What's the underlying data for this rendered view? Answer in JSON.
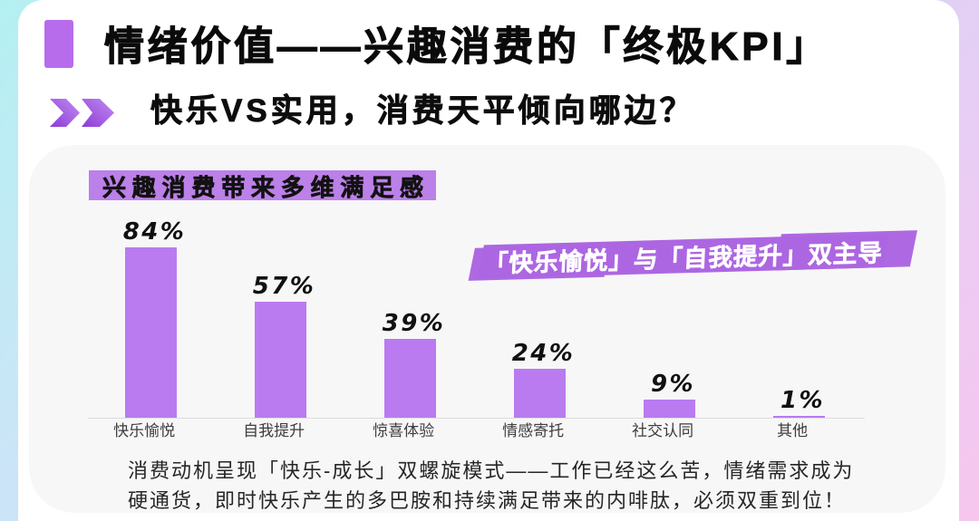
{
  "header": {
    "title": "情绪价值——兴趣消费的「终极KPI」",
    "subtitle": "快乐VS实用，消费天平倾向哪边？"
  },
  "panel": {
    "tag": "兴趣消费带来多维满足感",
    "banner": "「快乐愉悦」与「自我提升」双主导"
  },
  "note": {
    "lines": [
      "消费动机呈现「快乐-成长」双螺旋模式——工作已经这么苦，情绪需求成为",
      "硬通货，即时快乐产生的多巴胺和持续满足带来的内啡肽，必须双重到位！"
    ]
  },
  "chart_data": {
    "type": "bar",
    "title": "兴趣消费带来多维满足感",
    "categories": [
      "快乐愉悦",
      "自我提升",
      "惊喜体验",
      "情感寄托",
      "社交认同",
      "其他"
    ],
    "values": [
      84,
      57,
      39,
      24,
      9,
      1
    ],
    "value_labels": [
      "84%",
      "57%",
      "39%",
      "24%",
      "9%",
      "1%"
    ],
    "unit": "%",
    "ylim": [
      0,
      100
    ],
    "grid": false,
    "legend": false,
    "annotation": "「快乐愉悦」与「自我提升」双主导",
    "bar_color": "#ba7af0"
  },
  "colors": {
    "background_gradient": [
      "#b4f0f2",
      "#c8e7f6",
      "#d3defa",
      "#d9d4f6",
      "#ecccf3",
      "#f6c6ee"
    ],
    "card_bg": "#ffffff",
    "panel_bg": "#f7f7f8",
    "title_bullet": "#b76cec",
    "tag_bg": "#bc80e9",
    "banner_bg": "#ad66e2",
    "bar_fill": "#ba7af0",
    "text_dark": "#0b0b0b"
  }
}
